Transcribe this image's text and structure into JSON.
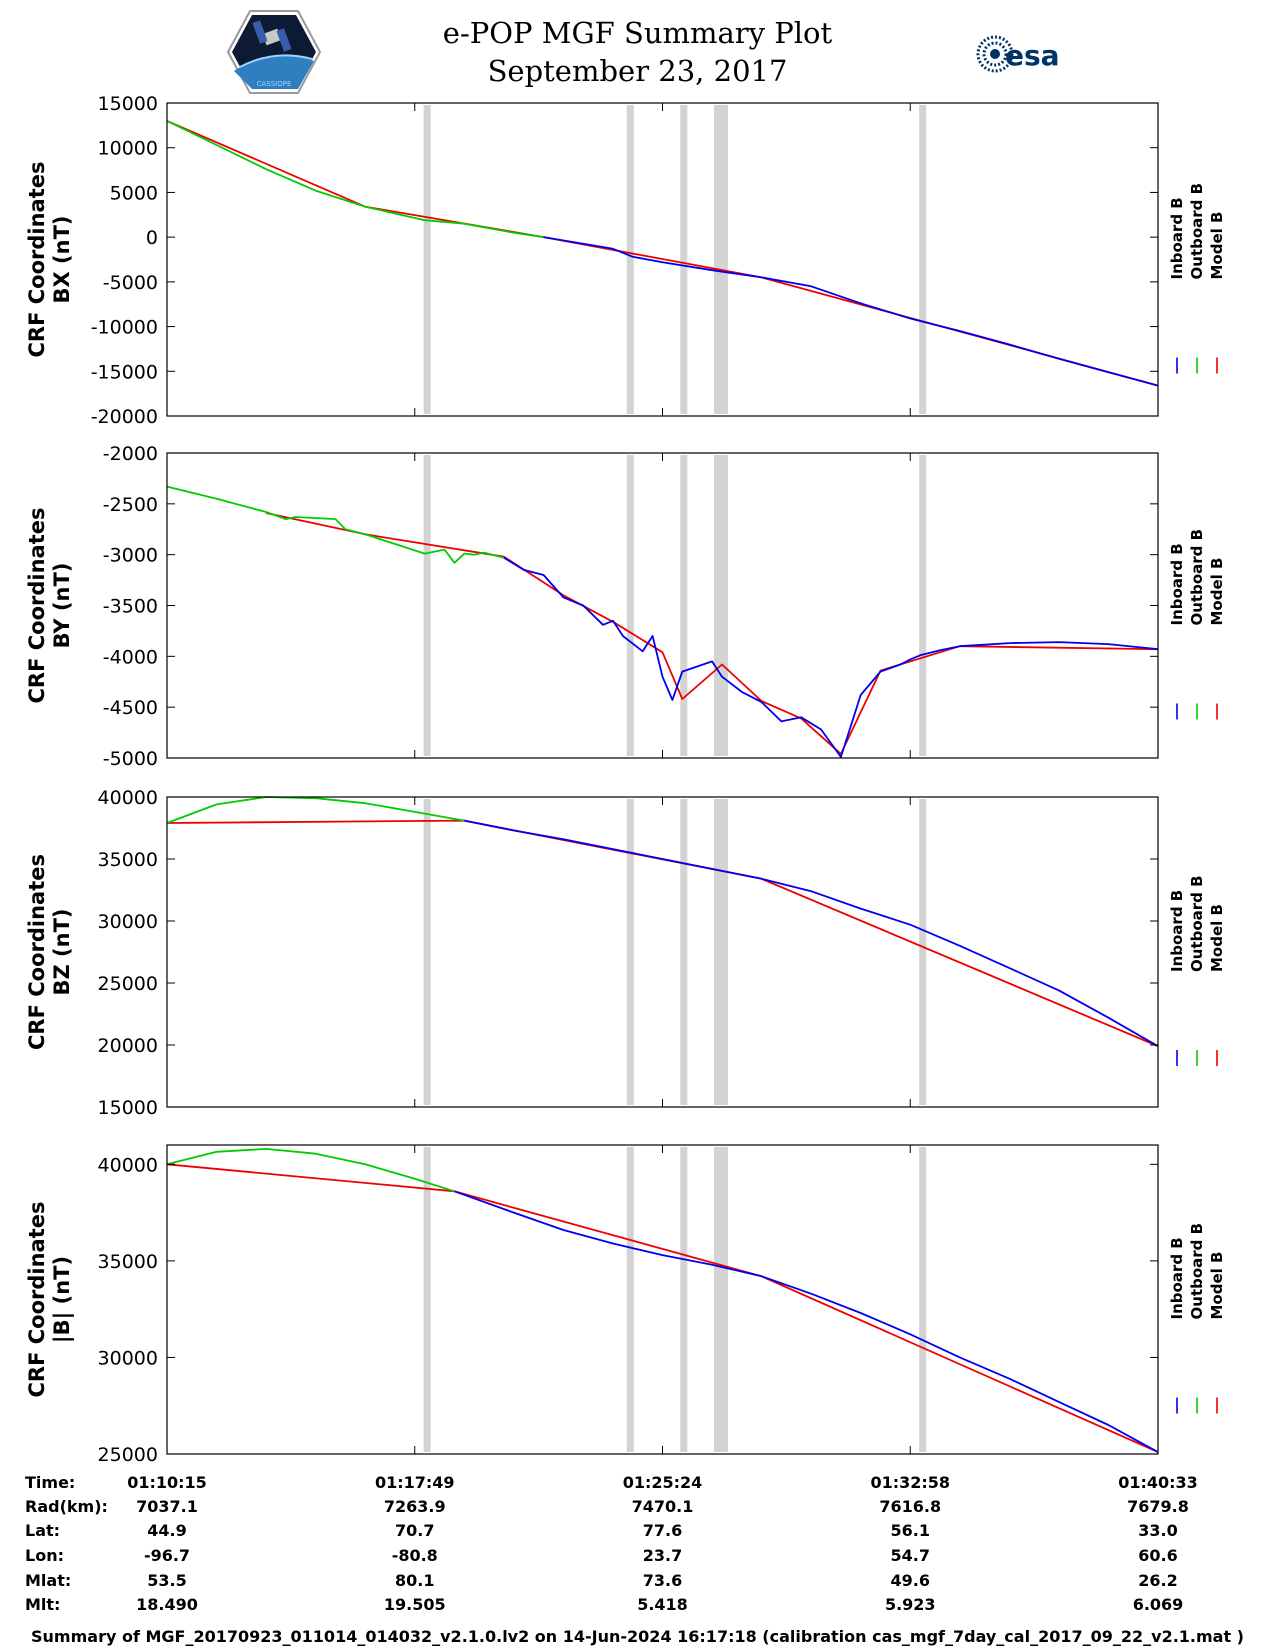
{
  "header": {
    "title": "e-POP MGF Summary Plot",
    "date": "September 23, 2017",
    "logo_left": "CASSIOPE",
    "logo_right": "esa"
  },
  "colors": {
    "inboard": "#0000ee",
    "outboard": "#00cc00",
    "model": "#ee0000",
    "gap": "#d3d3d3"
  },
  "legend": [
    "Inboard B",
    "Outboard B",
    "Model B"
  ],
  "chart_data": [
    {
      "type": "line",
      "ylabel_line1": "CRF Coordinates",
      "ylabel_line2": "BX (nT)",
      "ylim": [
        -20000,
        15000
      ],
      "yticks": [
        15000,
        10000,
        5000,
        0,
        -5000,
        -10000,
        -15000,
        -20000
      ],
      "series": [
        {
          "name": "Outboard B",
          "x": [
            0,
            0.05,
            0.1,
            0.15,
            0.2,
            0.26,
            0.29,
            0.3,
            0.35,
            0.38
          ],
          "y": [
            13000,
            10300,
            7600,
            5200,
            3400,
            1900,
            1600,
            1500,
            500,
            0
          ]
        },
        {
          "name": "Inboard B",
          "x": [
            0.38,
            0.45,
            0.47,
            0.5,
            0.55,
            0.6,
            0.65,
            0.7,
            0.75,
            0.8,
            0.85,
            0.9,
            0.95,
            1.0
          ],
          "y": [
            0,
            -1300,
            -2200,
            -2800,
            -3700,
            -4500,
            -5500,
            -7400,
            -9100,
            -10500,
            -12000,
            -13600,
            -15100,
            -16600
          ]
        },
        {
          "name": "Model B",
          "x": [
            0,
            0.2,
            0.38,
            0.6,
            1.0
          ],
          "y": [
            13000,
            3400,
            0,
            -4500,
            -16600
          ]
        }
      ]
    },
    {
      "type": "line",
      "ylabel_line1": "CRF Coordinates",
      "ylabel_line2": "BY (nT)",
      "ylim": [
        -5000,
        -2000
      ],
      "yticks": [
        -2000,
        -2500,
        -3000,
        -3500,
        -4000,
        -4500,
        -5000
      ],
      "series": [
        {
          "name": "Outboard B",
          "x": [
            0,
            0.05,
            0.1,
            0.12,
            0.13,
            0.17,
            0.18,
            0.2,
            0.26,
            0.28,
            0.29,
            0.3,
            0.31,
            0.32,
            0.34
          ],
          "y": [
            -2330,
            -2450,
            -2580,
            -2650,
            -2630,
            -2650,
            -2750,
            -2800,
            -2990,
            -2950,
            -3080,
            -2990,
            -3000,
            -2980,
            -3030
          ]
        },
        {
          "name": "Inboard B",
          "x": [
            0.34,
            0.36,
            0.38,
            0.4,
            0.42,
            0.44,
            0.45,
            0.46,
            0.48,
            0.49,
            0.5,
            0.51,
            0.52,
            0.55,
            0.56,
            0.58,
            0.6,
            0.62,
            0.64,
            0.66,
            0.68,
            0.7,
            0.72,
            0.74,
            0.75,
            0.76,
            0.78,
            0.8,
            0.85,
            0.9,
            0.95,
            1.0
          ],
          "y": [
            -3030,
            -3150,
            -3200,
            -3420,
            -3500,
            -3690,
            -3650,
            -3800,
            -3950,
            -3800,
            -4200,
            -4430,
            -4150,
            -4050,
            -4200,
            -4350,
            -4450,
            -4640,
            -4600,
            -4720,
            -4990,
            -4380,
            -4150,
            -4080,
            -4030,
            -3990,
            -3940,
            -3900,
            -3870,
            -3860,
            -3880,
            -3930
          ]
        },
        {
          "name": "Model B",
          "x": [
            0.1,
            0.2,
            0.34,
            0.4,
            0.45,
            0.5,
            0.52,
            0.56,
            0.6,
            0.64,
            0.68,
            0.72,
            0.8,
            1.0
          ],
          "y": [
            -2590,
            -2800,
            -3020,
            -3400,
            -3660,
            -3960,
            -4420,
            -4080,
            -4440,
            -4610,
            -4960,
            -4140,
            -3900,
            -3930
          ]
        }
      ]
    },
    {
      "type": "line",
      "ylabel_line1": "CRF Coordinates",
      "ylabel_line2": "BZ (nT)",
      "ylim": [
        15000,
        40000
      ],
      "yticks": [
        40000,
        35000,
        30000,
        25000,
        20000,
        15000
      ],
      "series": [
        {
          "name": "Outboard B",
          "x": [
            0,
            0.05,
            0.1,
            0.15,
            0.2,
            0.25,
            0.3
          ],
          "y": [
            37900,
            39400,
            40000,
            39900,
            39500,
            38800,
            38100
          ]
        },
        {
          "name": "Inboard B",
          "x": [
            0.3,
            0.35,
            0.4,
            0.45,
            0.5,
            0.55,
            0.6,
            0.65,
            0.7,
            0.75,
            0.8,
            0.85,
            0.9,
            0.95,
            1.0
          ],
          "y": [
            38100,
            37300,
            36600,
            35800,
            35000,
            34200,
            33400,
            32400,
            31000,
            29700,
            28000,
            26200,
            24400,
            22200,
            19900
          ]
        },
        {
          "name": "Model B",
          "x": [
            0,
            0.3,
            0.6,
            1.0
          ],
          "y": [
            37900,
            38100,
            33400,
            19900
          ]
        }
      ]
    },
    {
      "type": "line",
      "ylabel_line1": "CRF Coordinates",
      "ylabel_line2": "|B| (nT)",
      "ylim": [
        25000,
        41000
      ],
      "yticks": [
        40000,
        35000,
        30000,
        25000
      ],
      "series": [
        {
          "name": "Outboard B",
          "x": [
            0,
            0.05,
            0.1,
            0.15,
            0.2,
            0.25,
            0.29
          ],
          "y": [
            40000,
            40650,
            40800,
            40550,
            40000,
            39250,
            38600
          ]
        },
        {
          "name": "Inboard B",
          "x": [
            0.29,
            0.35,
            0.4,
            0.45,
            0.5,
            0.55,
            0.6,
            0.65,
            0.7,
            0.75,
            0.8,
            0.85,
            0.9,
            0.95,
            1.0
          ],
          "y": [
            38600,
            37500,
            36600,
            35900,
            35300,
            34800,
            34200,
            33300,
            32300,
            31200,
            30000,
            28900,
            27700,
            26500,
            25100
          ]
        },
        {
          "name": "Model B",
          "x": [
            0,
            0.29,
            0.6,
            1.0
          ],
          "y": [
            40000,
            38600,
            34200,
            25100
          ]
        }
      ]
    }
  ],
  "gaps": [
    0.262,
    0.467,
    0.521,
    0.555,
    0.562,
    0.762
  ],
  "info": {
    "row_labels": [
      "Time:",
      "Rad(km):",
      "Lat:",
      "Lon:",
      "Mlat:",
      "Mlt:"
    ],
    "columns": [
      [
        "01:10:15",
        "7037.1",
        "44.9",
        "-96.7",
        "53.5",
        "18.490"
      ],
      [
        "01:17:49",
        "7263.9",
        "70.7",
        "-80.8",
        "80.1",
        "19.505"
      ],
      [
        "01:25:24",
        "7470.1",
        "77.6",
        "23.7",
        "73.6",
        "5.418"
      ],
      [
        "01:32:58",
        "7616.8",
        "56.1",
        "54.7",
        "49.6",
        "5.923"
      ],
      [
        "01:40:33",
        "7679.8",
        "33.0",
        "60.6",
        "26.2",
        "6.069"
      ]
    ]
  },
  "footer": "Summary of MGF_20170923_011014_014032_v2.1.0.lv2 on 14-Jun-2024 16:17:18 (calibration cas_mgf_7day_cal_2017_09_22_v2.1.mat )"
}
